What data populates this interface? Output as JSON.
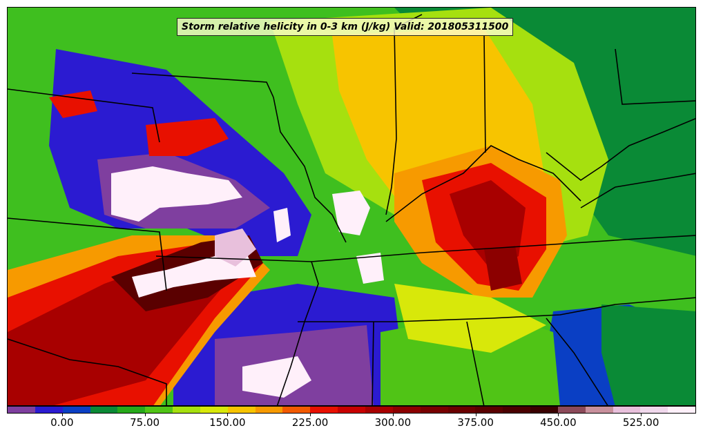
{
  "title": "Storm relative helicity in 0-3 km (J/kg) Valid: 201805311500",
  "colorbar": {
    "colors": [
      "#7f3f9f",
      "#2b1bd1",
      "#0a3fc4",
      "#0a8a36",
      "#26a91a",
      "#50c416",
      "#a6e00f",
      "#d8e80a",
      "#f7c400",
      "#f79a00",
      "#f25a00",
      "#e81000",
      "#c80000",
      "#a80000",
      "#8c0000",
      "#780000",
      "#6a0000",
      "#5a0000",
      "#4a0000",
      "#3a0000",
      "#8c4a5a",
      "#c8909c",
      "#e8c0dc",
      "#f0d8ec",
      "#fff0fa"
    ],
    "tick_labels": [
      "0.00",
      "75.00",
      "150.00",
      "225.00",
      "300.00",
      "375.00",
      "450.00",
      "525.00"
    ],
    "tick_values": [
      0,
      75,
      150,
      225,
      300,
      375,
      450,
      525
    ],
    "min": -50,
    "max": 575
  },
  "map_features": {
    "field": "storm-relative-helicity-0-3km",
    "units": "J/kg",
    "valid_time": "201805311500"
  }
}
